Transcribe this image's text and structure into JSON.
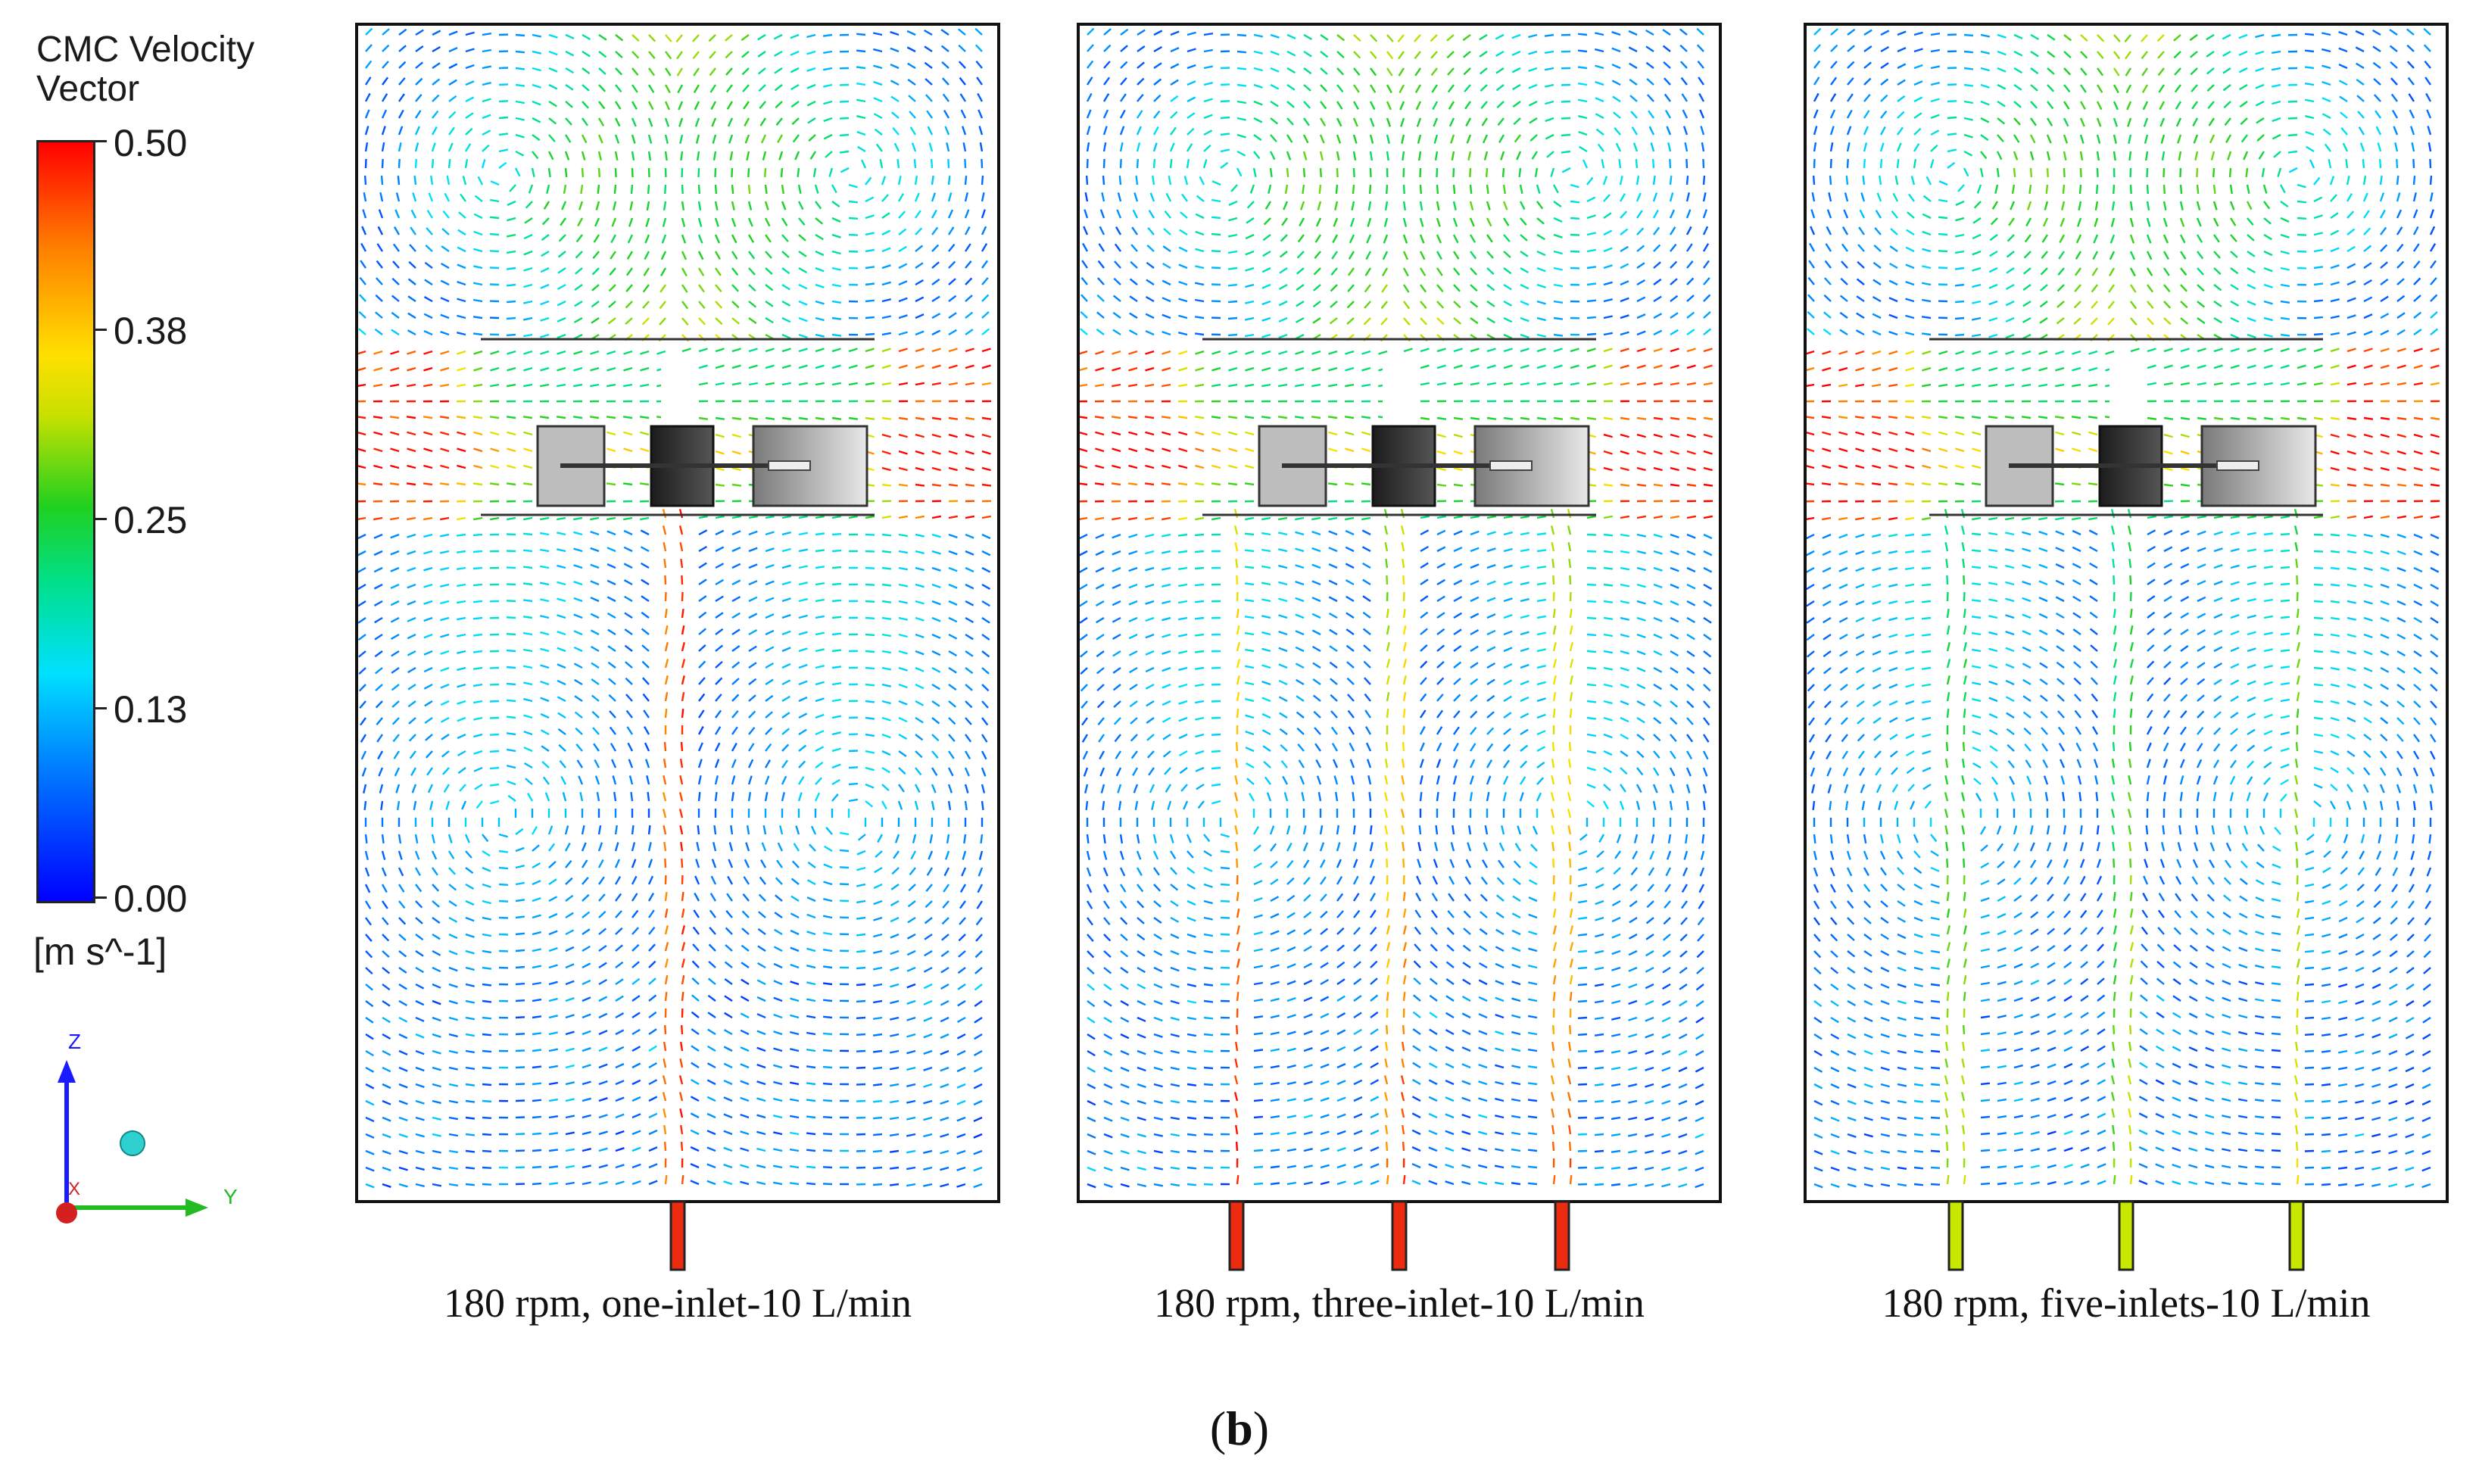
{
  "legend": {
    "title_line1": "CMC Velocity",
    "title_line2": "Vector",
    "ticks": [
      "0.50",
      "0.38",
      "0.25",
      "0.13",
      "0.00"
    ],
    "unit": "[m s^-1]",
    "min": 0.0,
    "max": 0.5
  },
  "axes": {
    "z_label": "Z",
    "y_label": "Y",
    "x_label": "X"
  },
  "panels": [
    {
      "caption": "180 rpm, one-inlet-10 L/min",
      "inlets": 1
    },
    {
      "caption": "180 rpm, three-inlet-10 L/min",
      "inlets": 3
    },
    {
      "caption": "180 rpm, five-inlets-10 L/min",
      "inlets": 5
    }
  ],
  "figure_label": "b",
  "colors": {
    "low": "#0000ff",
    "mid_low": "#00e0ff",
    "mid": "#20d020",
    "mid_high": "#ffe000",
    "high": "#ff0000"
  }
}
